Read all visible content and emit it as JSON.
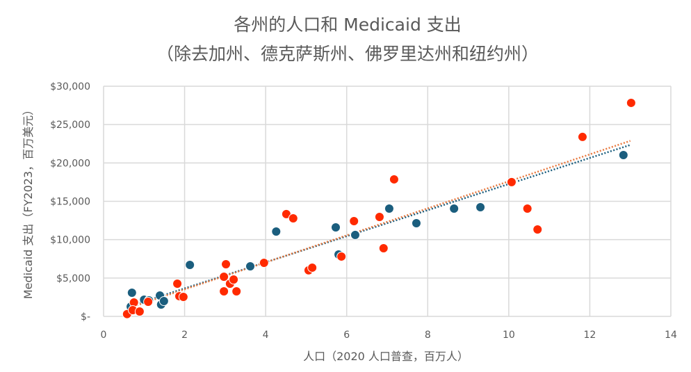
{
  "chart_data": {
    "type": "scatter",
    "title": "各州的人口和 Medicaid 支出",
    "subtitle": "（除去加州、德克萨斯州、佛罗里达州和纽约州）",
    "xlabel": "人口（2020 人口普查，百万人）",
    "ylabel": "Medicaid 支出（FY2023，百万美元）",
    "xlim": [
      0,
      14
    ],
    "ylim": [
      0,
      30000
    ],
    "x_ticks": [
      "0",
      "2",
      "4",
      "6",
      "8",
      "10",
      "12",
      "14"
    ],
    "y_ticks": [
      "$-",
      "$5,000",
      "$10,000",
      "$15,000",
      "$20,000",
      "$25,000",
      "$30,000"
    ],
    "grid": true,
    "legend": "none",
    "series": [
      {
        "name": "blue",
        "color": "#1b5e7e",
        "trendline": {
          "slope": 1700,
          "intercept": 250,
          "x_range": [
            0.6,
            13.0
          ]
        },
        "points": [
          [
            0.7,
            3080
          ],
          [
            0.67,
            1270
          ],
          [
            1.0,
            2180
          ],
          [
            1.12,
            2090
          ],
          [
            1.39,
            2720
          ],
          [
            1.42,
            1540
          ],
          [
            1.49,
            1990
          ],
          [
            2.13,
            6710
          ],
          [
            3.62,
            6530
          ],
          [
            4.26,
            11060
          ],
          [
            5.73,
            11600
          ],
          [
            5.8,
            8070
          ],
          [
            6.21,
            10610
          ],
          [
            7.05,
            14050
          ],
          [
            7.72,
            12150
          ],
          [
            8.65,
            14050
          ],
          [
            9.3,
            14230
          ],
          [
            12.83,
            21030
          ]
        ]
      },
      {
        "name": "red",
        "color": "#ff2a00",
        "trend_color": "#e8793f",
        "trendline": {
          "slope": 1760,
          "intercept": 0,
          "x_range": [
            0.6,
            13.0
          ]
        },
        "points": [
          [
            0.58,
            300
          ],
          [
            0.75,
            1810
          ],
          [
            0.72,
            820
          ],
          [
            0.89,
            630
          ],
          [
            1.1,
            1900
          ],
          [
            1.82,
            4260
          ],
          [
            1.87,
            2630
          ],
          [
            1.97,
            2540
          ],
          [
            3.02,
            6800
          ],
          [
            2.97,
            3260
          ],
          [
            2.97,
            5170
          ],
          [
            3.12,
            4260
          ],
          [
            3.21,
            4800
          ],
          [
            3.28,
            3260
          ],
          [
            3.96,
            6980
          ],
          [
            4.51,
            13330
          ],
          [
            4.68,
            12780
          ],
          [
            5.06,
            6000
          ],
          [
            5.15,
            6350
          ],
          [
            5.87,
            7800
          ],
          [
            6.18,
            12420
          ],
          [
            6.81,
            12960
          ],
          [
            6.91,
            8880
          ],
          [
            7.17,
            17860
          ],
          [
            10.07,
            17500
          ],
          [
            10.46,
            14050
          ],
          [
            10.71,
            11330
          ],
          [
            11.82,
            23390
          ],
          [
            13.02,
            27830
          ]
        ]
      }
    ]
  }
}
